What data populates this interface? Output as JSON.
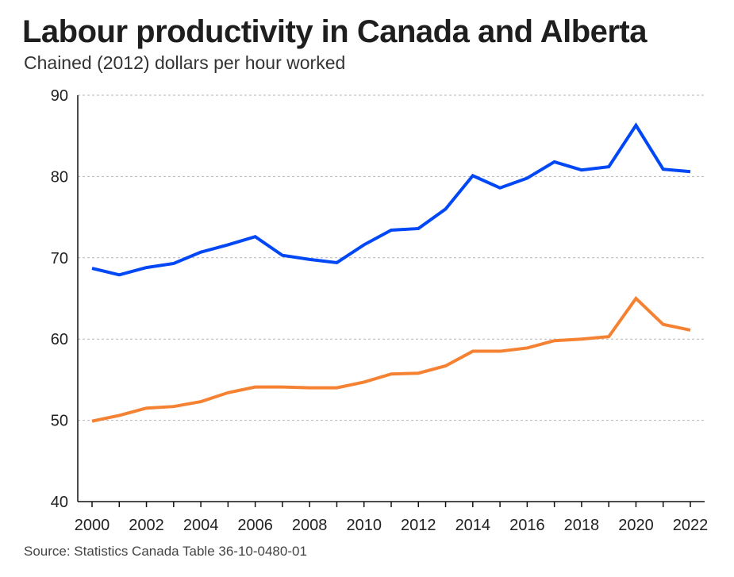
{
  "chart_data": {
    "type": "line",
    "title": "Labour productivity in Canada and Alberta",
    "subtitle": "Chained (2012) dollars per hour worked",
    "source": "Source: Statistics Canada Table 36-10-0480-01",
    "xlabel": "",
    "ylabel": "",
    "xlim": [
      2000,
      2022
    ],
    "ylim": [
      40,
      90
    ],
    "yticks": [
      40,
      50,
      60,
      70,
      80,
      90
    ],
    "xticks": [
      2000,
      2002,
      2004,
      2006,
      2008,
      2010,
      2012,
      2014,
      2016,
      2018,
      2020,
      2022
    ],
    "grid": "horizontal dotted",
    "legend": "none",
    "x": [
      2000,
      2001,
      2002,
      2003,
      2004,
      2005,
      2006,
      2007,
      2008,
      2009,
      2010,
      2011,
      2012,
      2013,
      2014,
      2015,
      2016,
      2017,
      2018,
      2019,
      2020,
      2021,
      2022
    ],
    "series": [
      {
        "color": "#0047f5",
        "values": [
          68.7,
          67.9,
          68.8,
          69.3,
          70.7,
          71.6,
          72.6,
          70.3,
          69.8,
          69.4,
          71.6,
          73.4,
          73.6,
          76.0,
          80.1,
          78.6,
          79.8,
          81.8,
          80.8,
          81.2,
          86.3,
          80.9,
          80.6
        ]
      },
      {
        "color": "#f58233",
        "values": [
          49.9,
          50.6,
          51.5,
          51.7,
          52.3,
          53.4,
          54.1,
          54.1,
          54.0,
          54.0,
          54.7,
          55.7,
          55.8,
          56.7,
          58.5,
          58.5,
          58.9,
          59.8,
          60.0,
          60.3,
          65.0,
          61.8,
          61.1
        ]
      }
    ]
  }
}
